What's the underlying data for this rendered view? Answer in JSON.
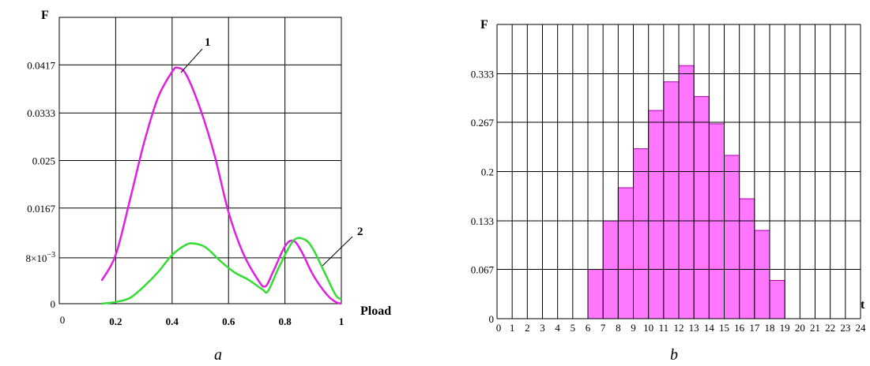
{
  "chart_data": [
    {
      "type": "line",
      "panel_label": "a",
      "ylabel": "F",
      "xlabel": "Pload",
      "xlim": [
        0,
        1
      ],
      "ylim": [
        0,
        0.05
      ],
      "x_ticks": [
        "0",
        "0.2",
        "0.4",
        "0.6",
        "0.8",
        "1"
      ],
      "y_ticks": [
        "0",
        "8×10",
        "0.0167",
        "0.025",
        "0.0333",
        "0.0417"
      ],
      "y_tick_exponent": "−3",
      "grid": true,
      "series": [
        {
          "name": "1",
          "color": "#e020e0",
          "x": [
            0.15,
            0.2,
            0.25,
            0.3,
            0.35,
            0.4,
            0.42,
            0.45,
            0.5,
            0.55,
            0.6,
            0.65,
            0.7,
            0.73,
            0.76,
            0.8,
            0.83,
            0.86,
            0.9,
            0.95,
            0.98,
            1.0
          ],
          "y": [
            0.004,
            0.0085,
            0.018,
            0.028,
            0.036,
            0.0405,
            0.0412,
            0.04,
            0.034,
            0.026,
            0.016,
            0.009,
            0.0045,
            0.003,
            0.0058,
            0.01,
            0.011,
            0.009,
            0.005,
            0.0015,
            0.0003,
            0.0
          ]
        },
        {
          "name": "2",
          "color": "#33dd33",
          "x": [
            0.15,
            0.2,
            0.25,
            0.3,
            0.35,
            0.4,
            0.45,
            0.48,
            0.52,
            0.57,
            0.62,
            0.67,
            0.72,
            0.74,
            0.78,
            0.83,
            0.87,
            0.9,
            0.94,
            0.98,
            1.0
          ],
          "y": [
            0.0,
            0.0003,
            0.001,
            0.003,
            0.0055,
            0.0085,
            0.0103,
            0.0105,
            0.0098,
            0.0075,
            0.0055,
            0.0042,
            0.0025,
            0.0022,
            0.0065,
            0.011,
            0.0112,
            0.0095,
            0.0055,
            0.0015,
            0.0008
          ]
        }
      ]
    },
    {
      "type": "bar",
      "panel_label": "b",
      "ylabel": "F",
      "xlabel": "t",
      "xlim": [
        0,
        24
      ],
      "ylim": [
        0,
        0.4
      ],
      "x_ticks": [
        "0",
        "1",
        "2",
        "3",
        "4",
        "5",
        "6",
        "7",
        "8",
        "9",
        "10",
        "11",
        "12",
        "13",
        "14",
        "15",
        "16",
        "17",
        "18",
        "19",
        "20",
        "21",
        "22",
        "23",
        "24"
      ],
      "y_ticks": [
        "0",
        "0.067",
        "0.133",
        "0.2",
        "0.267",
        "0.333"
      ],
      "grid": true,
      "bar_color": "#ff77ff",
      "bar_edge_color": "#aa00aa",
      "bars": [
        {
          "x": 6.5,
          "value": 0.067
        },
        {
          "x": 7.5,
          "value": 0.133
        },
        {
          "x": 8.5,
          "value": 0.178
        },
        {
          "x": 9.5,
          "value": 0.231
        },
        {
          "x": 10.5,
          "value": 0.283
        },
        {
          "x": 11.5,
          "value": 0.322
        },
        {
          "x": 12.5,
          "value": 0.344
        },
        {
          "x": 13.5,
          "value": 0.302
        },
        {
          "x": 14.5,
          "value": 0.265
        },
        {
          "x": 15.5,
          "value": 0.222
        },
        {
          "x": 16.5,
          "value": 0.163
        },
        {
          "x": 17.5,
          "value": 0.12
        },
        {
          "x": 18.5,
          "value": 0.052
        }
      ]
    }
  ]
}
